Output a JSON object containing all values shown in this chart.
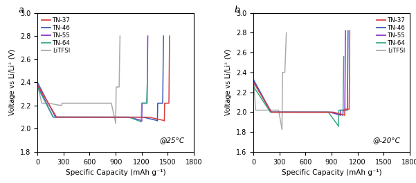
{
  "panel_a": {
    "label": "a",
    "temp_annotation": "@25°C",
    "ylim": [
      1.8,
      3.0
    ],
    "xlim": [
      0,
      1800
    ],
    "yticks": [
      1.8,
      2.0,
      2.2,
      2.4,
      2.6,
      2.8,
      3.0
    ],
    "xticks": [
      0,
      300,
      600,
      900,
      1200,
      1500,
      1800
    ]
  },
  "panel_b": {
    "label": "b",
    "temp_annotation": "@-20°C",
    "ylim": [
      1.6,
      3.0
    ],
    "xlim": [
      0,
      1800
    ],
    "yticks": [
      1.6,
      1.8,
      2.0,
      2.2,
      2.4,
      2.6,
      2.8,
      3.0
    ],
    "xticks": [
      0,
      300,
      600,
      900,
      1200,
      1500,
      1800
    ]
  },
  "colors": {
    "TN-37": "#d94040",
    "TN-46": "#3a5ab8",
    "TN-55": "#8833cc",
    "TN-64": "#33aa88",
    "LiTFSI": "#aaaaaa"
  },
  "legend_labels": [
    "TN-37",
    "TN-46",
    "TN-55",
    "TN-64",
    "LiTFSI"
  ],
  "ylabel": "Voltage vs Li/Li⁺ (V)",
  "xlabel": "Specific Capacity (mAh g⁻¹)"
}
